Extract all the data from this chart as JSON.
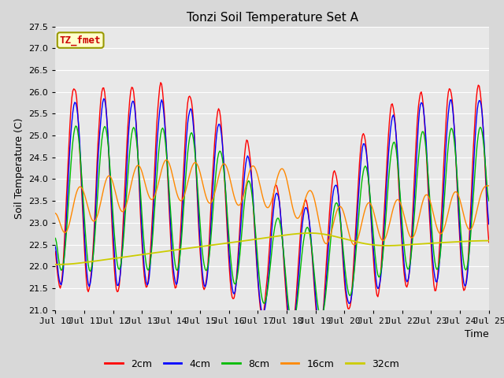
{
  "title": "Tonzi Soil Temperature Set A",
  "xlabel": "Time",
  "ylabel": "Soil Temperature (C)",
  "ylim": [
    21.0,
    27.5
  ],
  "colors": {
    "2cm": "#ff0000",
    "4cm": "#0000ff",
    "8cm": "#00bb00",
    "16cm": "#ff8800",
    "32cm": "#cccc00"
  },
  "legend_label": "TZ_fmet",
  "legend_bg": "#ffffcc",
  "legend_border": "#999900",
  "legend_text_color": "#cc0000",
  "plot_bg": "#e8e8e8",
  "grid_color": "#ffffff",
  "title_fontsize": 11,
  "axis_fontsize": 9,
  "tick_fontsize": 8,
  "x_tick_labels": [
    "Jul 10",
    "Jul 11",
    "Jul 12",
    "Jul 13",
    "Jul 14",
    "Jul 15",
    "Jul 16",
    "Jul 17",
    "Jul 18",
    "Jul 19",
    "Jul 20",
    "Jul 21",
    "Jul 22",
    "Jul 23",
    "Jul 24",
    "Jul 25"
  ]
}
